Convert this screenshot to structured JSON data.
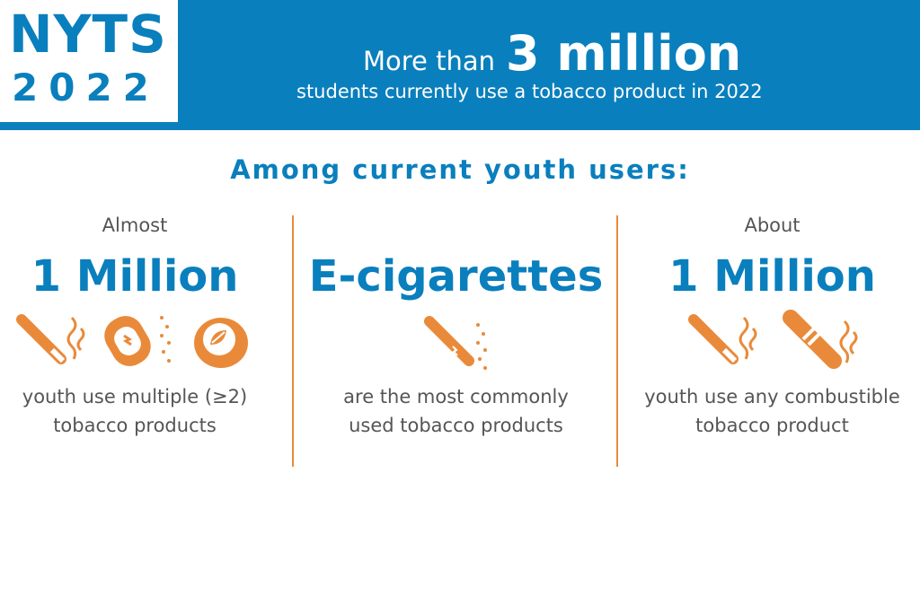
{
  "logo": {
    "line1": "NYTS",
    "line2": "2022"
  },
  "headline": {
    "prefix": "More than",
    "number": "3 million",
    "subtext": "students currently use a tobacco product in 2022"
  },
  "section_title": "Among current youth users:",
  "columns": [
    {
      "qualifier": "Almost",
      "figure": "1 Million",
      "description_line1": "youth use multiple (≥2)",
      "description_line2": "tobacco products",
      "icons": [
        "cigarette-icon",
        "pouch-icon",
        "smokeless-tin-icon"
      ]
    },
    {
      "qualifier": "",
      "figure": "E-cigarettes",
      "description_line1": "are the most commonly",
      "description_line2": "used tobacco products",
      "icons": [
        "e-cigarette-icon"
      ]
    },
    {
      "qualifier": "About",
      "figure": "1 Million",
      "description_line1": "youth use any combustible",
      "description_line2": "tobacco product",
      "icons": [
        "cigarette-icon",
        "cigar-icon"
      ]
    }
  ],
  "colors": {
    "brand_blue": "#0a7fbd",
    "accent_orange": "#e98a3a",
    "text_gray": "#555555"
  }
}
